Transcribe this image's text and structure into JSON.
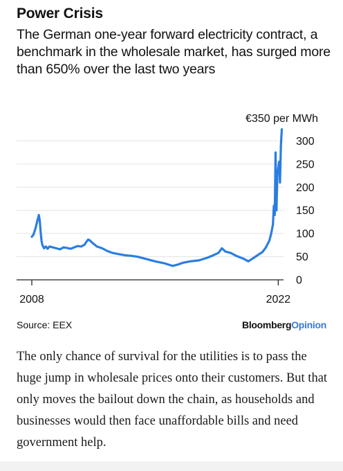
{
  "header": {
    "title": "Power Crisis",
    "subtitle": "The German one-year forward electricity contract, a benchmark in the wholesale market, has surged more than 650% over the last two years"
  },
  "chart_data": {
    "type": "line",
    "unit_label": "€350 per MWh",
    "ylim": [
      0,
      350
    ],
    "yticks": [
      0,
      50,
      100,
      150,
      200,
      250,
      300
    ],
    "xlim": [
      2008,
      2022.3
    ],
    "xticks": [
      2008,
      2022
    ],
    "x_tick_labels": [
      "2008",
      "2022"
    ],
    "grid": "horizontal",
    "line_color": "#2a7de1",
    "series": [
      {
        "x": [
          2008.0,
          2008.1,
          2008.2,
          2008.3,
          2008.4,
          2008.45,
          2008.5,
          2008.55,
          2008.6,
          2008.7,
          2008.8,
          2008.9,
          2009.0,
          2009.2,
          2009.4,
          2009.6,
          2009.8,
          2010.0,
          2010.2,
          2010.4,
          2010.6,
          2010.8,
          2011.0,
          2011.1,
          2011.2,
          2011.3,
          2011.5,
          2011.7,
          2012.0,
          2012.3,
          2012.6,
          2013.0,
          2013.3,
          2013.6,
          2014.0,
          2014.5,
          2015.0,
          2015.5,
          2016.0,
          2016.3,
          2016.6,
          2017.0,
          2017.5,
          2018.0,
          2018.3,
          2018.6,
          2018.8,
          2019.0,
          2019.3,
          2019.6,
          2020.0,
          2020.3,
          2020.5,
          2020.7,
          2020.9,
          2021.1,
          2021.3,
          2021.5,
          2021.6,
          2021.7,
          2021.75,
          2021.8,
          2021.85,
          2021.9,
          2021.95,
          2022.0,
          2022.05,
          2022.1,
          2022.15,
          2022.2
        ],
        "y": [
          93,
          98,
          110,
          125,
          140,
          128,
          105,
          85,
          75,
          68,
          72,
          67,
          72,
          70,
          68,
          66,
          70,
          69,
          67,
          70,
          73,
          72,
          76,
          82,
          87,
          85,
          78,
          72,
          68,
          62,
          58,
          55,
          53,
          52,
          50,
          45,
          40,
          36,
          30,
          33,
          37,
          40,
          42,
          48,
          53,
          58,
          68,
          61,
          58,
          52,
          46,
          40,
          45,
          50,
          55,
          60,
          70,
          85,
          100,
          120,
          160,
          140,
          275,
          150,
          230,
          240,
          255,
          210,
          290,
          325
        ]
      }
    ]
  },
  "footer": {
    "source": "Source: EEX",
    "brand_main": "Bloomberg",
    "brand_accent": "Opinion"
  },
  "article": {
    "paragraph": "The only chance of survival for the utilities is to pass the huge jump in wholesale prices onto their customers. But that only moves the bailout down the chain, as  households and businesses would then face unaffordable bills and need government help."
  }
}
